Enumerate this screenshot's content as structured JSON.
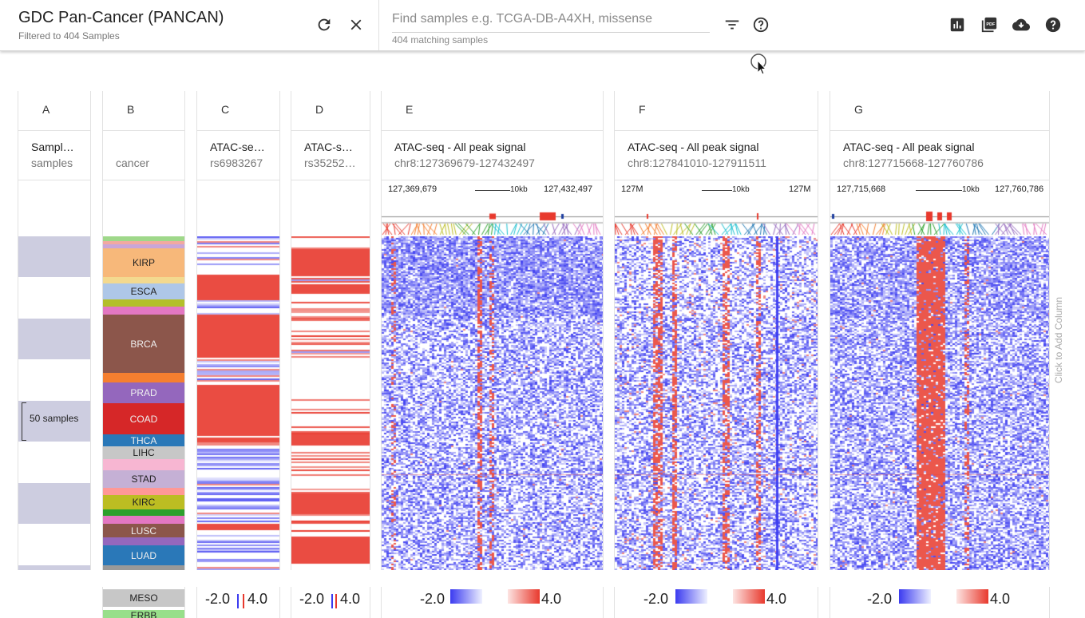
{
  "header": {
    "title": "GDC Pan-Cancer (PANCAN)",
    "subtitle": "Filtered to 404 Samples",
    "search_placeholder": "Find samples e.g. TCGA-DB-A4XH, missense",
    "search_value": "",
    "match_count": "404 matching samples"
  },
  "icons": {
    "refresh": "refresh-icon",
    "clear": "close-icon",
    "filter": "filter-icon",
    "help_search": "help-circle-icon",
    "chart": "bar-chart-icon",
    "pdf": "pdf-icon",
    "download": "cloud-download-icon",
    "help": "help-icon"
  },
  "columns": [
    {
      "id": "A",
      "title": "Sampl…",
      "subtitle": "samples"
    },
    {
      "id": "B",
      "title": "",
      "subtitle": "cancer"
    },
    {
      "id": "C",
      "title": "ATAC-se…",
      "subtitle": "rs6983267"
    },
    {
      "id": "D",
      "title": "ATAC-s…",
      "subtitle": "rs35252…"
    },
    {
      "id": "E",
      "title": "ATAC-seq - All peak signal",
      "subtitle": "chr8:127369679-127432497",
      "coord_left": "127,369,679",
      "coord_right": "127,432,497",
      "scale": "10kb"
    },
    {
      "id": "F",
      "title": "ATAC-seq - All peak signal",
      "subtitle": "chr8:127841010-127911511",
      "coord_left": "127M",
      "coord_right": "127M",
      "scale": "10kb"
    },
    {
      "id": "G",
      "title": "ATAC-seq - All peak signal",
      "subtitle": "chr8:127715668-127760786",
      "coord_left": "127,715,668",
      "coord_right": "127,760,786",
      "scale": "10kb"
    }
  ],
  "samples_label": "50 samples",
  "cancer_labels": [
    "KIRP",
    "ESCA",
    "BRCA",
    "PRAD",
    "COAD",
    "THCA",
    "LIHC",
    "STAD",
    "KIRC",
    "LUSC",
    "LUAD"
  ],
  "cancer_overflow": [
    "MESO",
    "ERBB"
  ],
  "legend": {
    "min": "-2.0",
    "max": "4.0"
  },
  "add_column_label": "Click to Add Column",
  "colors": {
    "low": "#3b3bf0",
    "high": "#e8392d",
    "sample_band": "#cdcde0"
  }
}
